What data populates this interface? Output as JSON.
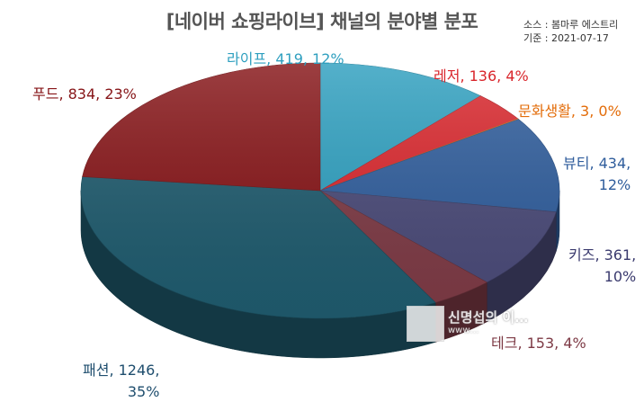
{
  "title": "[네이버 쇼핑라이브] 채널의 분야별 분포",
  "source_lines": [
    "소스 : 봄마루 에스트리",
    "기준 : 2021-07-17"
  ],
  "watermark": {
    "text": "신명섭의 이…",
    "sub": "www…"
  },
  "chart_data": {
    "type": "pie",
    "title": "[네이버 쇼핑라이브] 채널의 분야별 분포",
    "slices": [
      {
        "name": "라이프",
        "value": 419,
        "percent": "12%",
        "color": "#2e9fbf",
        "label": "라이프, 419, 12%"
      },
      {
        "name": "레저",
        "value": 136,
        "percent": "4%",
        "color": "#d9262c",
        "label": "레저, 136, 4%"
      },
      {
        "name": "문화생활",
        "value": 3,
        "percent": "0%",
        "color": "#f07a1c",
        "label": "문화생활, 3, 0%"
      },
      {
        "name": "뷰티",
        "value": 434,
        "percent": "12%",
        "color": "#2f5d9c",
        "label": "뷰티, 434, 12%"
      },
      {
        "name": "키즈",
        "value": 361,
        "percent": "10%",
        "color": "#4a4a78",
        "label": "키즈, 361, 10%"
      },
      {
        "name": "테크",
        "value": 153,
        "percent": "4%",
        "color": "#7d3a45",
        "label": "테크, 153, 4%"
      },
      {
        "name": "패션",
        "value": 1246,
        "percent": "35%",
        "color": "#1f5b6e",
        "label": "패션, 1246, 35%"
      },
      {
        "name": "푸드",
        "value": 834,
        "percent": "23%",
        "color": "#861417",
        "label": "푸드, 834, 23%"
      }
    ],
    "label_colors": {
      "라이프": "#2e9fbf",
      "레저": "#d9262c",
      "문화생활": "#e36c09",
      "뷰티": "#2f5d9c",
      "키즈": "#3a3a6e",
      "테크": "#7d3a45",
      "패션": "#1f4e6e",
      "푸드": "#861417"
    }
  }
}
